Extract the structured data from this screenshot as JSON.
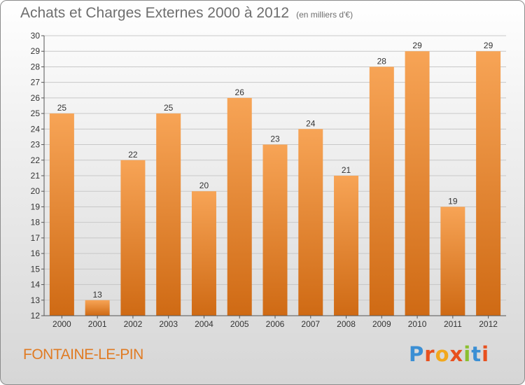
{
  "header": {
    "title": "Achats et Charges Externes 2000 à 2012",
    "subtitle": "(en milliers d'€)"
  },
  "footer": {
    "place": "FONTAINE-LE-PIN",
    "logo_text": "Proxiti"
  },
  "colors": {
    "bar_top": "#f7a456",
    "bar_bottom": "#cf6a14",
    "place_text": "#e07b23"
  },
  "chart_data": {
    "type": "bar",
    "categories": [
      "2000",
      "2001",
      "2002",
      "2003",
      "2004",
      "2005",
      "2006",
      "2007",
      "2008",
      "2009",
      "2010",
      "2011",
      "2012"
    ],
    "values": [
      25,
      13,
      22,
      25,
      20,
      26,
      23,
      24,
      21,
      28,
      29,
      19,
      29
    ],
    "title": "Achats et Charges Externes 2000 à 2012",
    "unit": "(en milliers d'€)",
    "ylim": [
      12,
      30
    ],
    "yticks": [
      12,
      13,
      14,
      15,
      16,
      17,
      18,
      19,
      20,
      21,
      22,
      23,
      24,
      25,
      26,
      27,
      28,
      29,
      30
    ],
    "grid": true,
    "data_labels": true
  }
}
